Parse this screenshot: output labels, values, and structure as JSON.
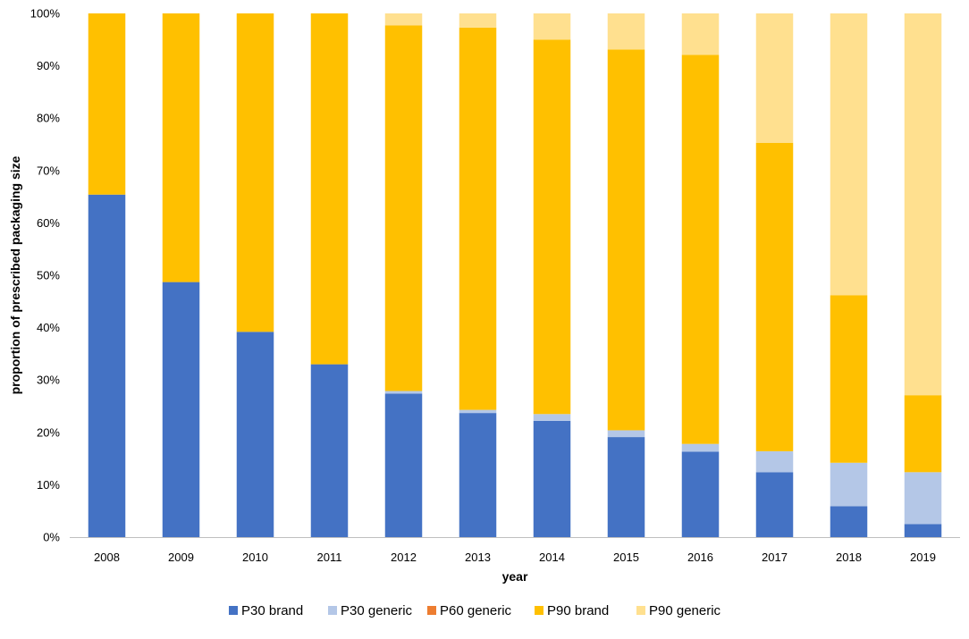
{
  "chart_data": {
    "type": "bar",
    "stacked": true,
    "normalized": true,
    "title": "",
    "xlabel": "year",
    "ylabel": "proportion  of prescribed packaging size",
    "ylim": [
      0,
      100
    ],
    "y_ticks": [
      "0%",
      "10%",
      "20%",
      "30%",
      "40%",
      "50%",
      "60%",
      "70%",
      "80%",
      "90%",
      "100%"
    ],
    "grid": false,
    "legend_position": "bottom",
    "categories": [
      "2008",
      "2009",
      "2010",
      "2011",
      "2012",
      "2013",
      "2014",
      "2015",
      "2016",
      "2017",
      "2018",
      "2019"
    ],
    "series": [
      {
        "name": "P30 brand",
        "color": "#4472c4",
        "values": [
          65.4,
          48.7,
          39.2,
          33.0,
          27.4,
          23.7,
          22.2,
          19.1,
          16.3,
          12.4,
          5.9,
          2.5
        ]
      },
      {
        "name": "P30 generic",
        "color": "#b4c7e7",
        "values": [
          0,
          0,
          0,
          0,
          0.5,
          0.6,
          1.3,
          1.3,
          1.5,
          4.0,
          8.3,
          9.9
        ]
      },
      {
        "name": "P60 generic",
        "color": "#ed7d31",
        "values": [
          0,
          0,
          0,
          0,
          0,
          0,
          0,
          0,
          0,
          0,
          0,
          0
        ]
      },
      {
        "name": "P90 brand",
        "color": "#ffc000",
        "values": [
          34.6,
          51.3,
          60.8,
          67.0,
          69.8,
          73.0,
          71.5,
          72.7,
          74.3,
          58.9,
          32.0,
          14.7
        ]
      },
      {
        "name": "P90 generic",
        "color": "#ffe08f",
        "values": [
          0,
          0,
          0,
          0,
          2.3,
          2.7,
          5.0,
          6.9,
          7.9,
          24.7,
          53.8,
          72.9
        ]
      }
    ]
  }
}
